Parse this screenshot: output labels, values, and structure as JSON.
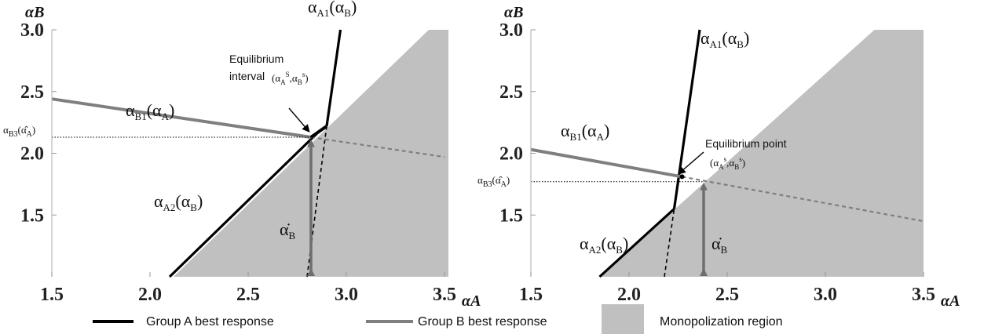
{
  "colors": {
    "group_a": "#000000",
    "group_b": "#7f7f7f",
    "region": "#c0c0c0",
    "arrow": "#6e6e6e"
  },
  "legend": {
    "items": [
      {
        "label": "Group A best response",
        "kind": "line",
        "color": "#000000"
      },
      {
        "label": "Group B best response",
        "kind": "line",
        "color": "#7f7f7f"
      },
      {
        "label": "Monopolization region",
        "kind": "box",
        "color": "#c0c0c0"
      }
    ]
  },
  "chart_data": [
    {
      "type": "line",
      "xlabel": "αA",
      "ylabel": "αB",
      "xlim": [
        1.5,
        3.5
      ],
      "ylim": [
        1.0,
        3.0
      ],
      "x_ticks": [
        "1.5",
        "2.0",
        "2.5",
        "3.0",
        "3.5"
      ],
      "y_ticks": [
        "1.5",
        "2.0",
        "2.5",
        "3.0"
      ],
      "grid": false,
      "monopolization_region": [
        [
          2.12,
          1.0
        ],
        [
          3.42,
          3.0
        ],
        [
          3.52,
          3.0
        ],
        [
          3.52,
          1.0
        ]
      ],
      "series": [
        {
          "name": "Group A best response",
          "label_main": "α",
          "label_sub": "A1",
          "label_arg": "(α",
          "label_argsub": "B",
          "points": [
            [
              2.9,
              2.22
            ],
            [
              2.97,
              3.0
            ]
          ]
        },
        {
          "name": "Group A best response",
          "label_main": "α",
          "label_sub": "A2",
          "label_arg": "(α",
          "label_argsub": "B",
          "points": [
            [
              2.1,
              1.0
            ],
            [
              2.85,
              2.16
            ]
          ]
        },
        {
          "name": "Group A best response",
          "style": "dashed",
          "points": [
            [
              2.8,
              1.0
            ],
            [
              2.9,
              2.22
            ]
          ]
        },
        {
          "name": "Group B best response",
          "label_main": "α",
          "label_sub": "B1",
          "label_arg": "(α",
          "label_argsub": "A",
          "points": [
            [
              1.5,
              2.44
            ],
            [
              2.82,
              2.13
            ]
          ]
        },
        {
          "name": "Group B best response",
          "style": "dashed",
          "points": [
            [
              2.82,
              2.13
            ],
            [
              3.5,
              1.97
            ]
          ]
        }
      ],
      "reference_line": {
        "label_main": "α",
        "label_sub": "B3",
        "label_arg": "(α̂",
        "label_argsub": "A",
        "y": 2.13
      },
      "annotation": {
        "line1": "Equilibrium",
        "line2": "interval",
        "sub_text": "(α",
        "sub_sup_a": "A",
        "sub_sup_s": "S",
        "sub_mid": ",α",
        "sub_sup_b": "B",
        "sub_sup_s2": "s",
        "sub_end": ")"
      },
      "arrow_label": {
        "main": "α̇",
        "sub": "B"
      },
      "equilibrium_interval": [
        [
          2.82,
          2.13
        ],
        [
          2.9,
          2.22
        ]
      ],
      "vertical_arrow": {
        "x": 2.82,
        "y_from": 1.0,
        "y_to": 2.12
      }
    },
    {
      "type": "line",
      "xlabel": "αA",
      "ylabel": "αB",
      "xlim": [
        1.5,
        3.5
      ],
      "ylim": [
        1.0,
        3.0
      ],
      "x_ticks": [
        "1.5",
        "2.0",
        "2.5",
        "3.0",
        "3.5"
      ],
      "y_ticks": [
        "1.5",
        "2.0",
        "2.5",
        "3.0"
      ],
      "grid": false,
      "monopolization_region": [
        [
          1.85,
          1.0
        ],
        [
          3.25,
          3.0
        ],
        [
          3.5,
          3.0
        ],
        [
          3.5,
          1.0
        ]
      ],
      "series": [
        {
          "name": "Group A best response",
          "label_main": "α",
          "label_sub": "A1",
          "label_arg": "(α",
          "label_argsub": "B",
          "points": [
            [
              2.23,
              1.55
            ],
            [
              2.36,
              3.0
            ]
          ]
        },
        {
          "name": "Group A best response",
          "label_main": "α",
          "label_sub": "A2",
          "label_arg": "(α",
          "label_argsub": "B",
          "points": [
            [
              1.85,
              1.0
            ],
            [
              2.23,
              1.55
            ]
          ]
        },
        {
          "name": "Group A best response",
          "style": "dashed",
          "points": [
            [
              2.18,
              1.0
            ],
            [
              2.23,
              1.55
            ]
          ]
        },
        {
          "name": "Group B best response",
          "label_main": "α",
          "label_sub": "B1",
          "label_arg": "(α",
          "label_argsub": "A",
          "points": [
            [
              1.5,
              2.03
            ],
            [
              2.27,
              1.81
            ]
          ]
        },
        {
          "name": "Group B best response",
          "style": "dashed",
          "points": [
            [
              2.27,
              1.81
            ],
            [
              3.5,
              1.45
            ]
          ]
        }
      ],
      "reference_line": {
        "label_main": "α",
        "label_sub": "B3",
        "label_arg": "(α̂",
        "label_argsub": "A",
        "y": 1.77
      },
      "annotation": {
        "line1": "Equilibrium point",
        "sub_text": "(α",
        "sub_sup_a": "A",
        "sub_sup_s": "s",
        "sub_mid": ",α",
        "sub_sup_b": "B",
        "sub_sup_s2": "s",
        "sub_end": ")"
      },
      "arrow_label": {
        "main": "α̇",
        "sub": "B"
      },
      "equilibrium_point": [
        2.27,
        1.81
      ],
      "vertical_arrow": {
        "x": 2.38,
        "y_from": 1.0,
        "y_to": 1.77
      }
    }
  ]
}
